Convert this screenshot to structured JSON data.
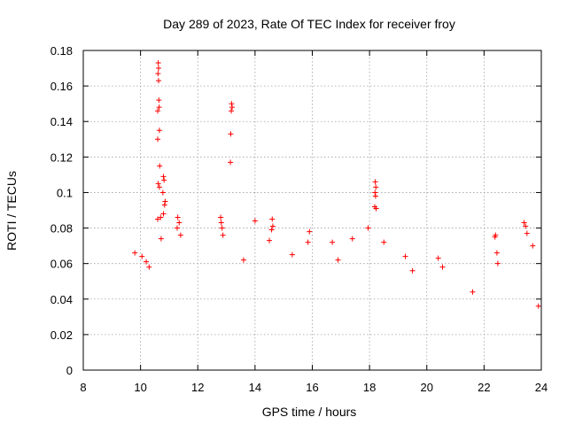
{
  "chart_data": {
    "type": "scatter",
    "title": "Day 289 of 2023, Rate Of TEC Index for receiver froy",
    "xlabel": "GPS time / hours",
    "ylabel": "ROTI / TECUs",
    "xlim": [
      8,
      24
    ],
    "ylim": [
      0,
      0.18
    ],
    "x_ticks": [
      "8",
      "10",
      "12",
      "14",
      "16",
      "18",
      "20",
      "22",
      "24"
    ],
    "y_ticks": [
      "0",
      "0.02",
      "0.04",
      "0.06",
      "0.08",
      "0.1",
      "0.12",
      "0.14",
      "0.16",
      "0.18"
    ],
    "grid": true,
    "marker": "+",
    "color": "#ff0000",
    "series": [
      {
        "points": [
          [
            10.62,
            0.173
          ],
          [
            10.63,
            0.17
          ],
          [
            10.61,
            0.167
          ],
          [
            10.63,
            0.163
          ],
          [
            10.64,
            0.152
          ],
          [
            10.65,
            0.148
          ],
          [
            10.6,
            0.146
          ],
          [
            10.66,
            0.135
          ],
          [
            10.6,
            0.13
          ],
          [
            10.67,
            0.115
          ],
          [
            10.62,
            0.105
          ],
          [
            10.66,
            0.103
          ],
          [
            10.8,
            0.109
          ],
          [
            10.82,
            0.107
          ],
          [
            10.78,
            0.1
          ],
          [
            10.86,
            0.095
          ],
          [
            10.84,
            0.093
          ],
          [
            10.8,
            0.088
          ],
          [
            10.7,
            0.086
          ],
          [
            10.6,
            0.085
          ],
          [
            10.72,
            0.074
          ],
          [
            13.18,
            0.15
          ],
          [
            13.2,
            0.148
          ],
          [
            13.17,
            0.146
          ],
          [
            13.15,
            0.133
          ],
          [
            13.14,
            0.117
          ],
          [
            18.2,
            0.106
          ],
          [
            18.22,
            0.103
          ],
          [
            18.19,
            0.1
          ],
          [
            18.21,
            0.098
          ],
          [
            18.18,
            0.092
          ],
          [
            18.23,
            0.091
          ],
          [
            11.3,
            0.086
          ],
          [
            11.35,
            0.083
          ],
          [
            11.28,
            0.08
          ],
          [
            11.4,
            0.076
          ],
          [
            12.8,
            0.086
          ],
          [
            12.82,
            0.083
          ],
          [
            12.85,
            0.08
          ],
          [
            12.88,
            0.076
          ],
          [
            14.6,
            0.085
          ],
          [
            14.62,
            0.081
          ],
          [
            14.58,
            0.079
          ],
          [
            14.5,
            0.073
          ],
          [
            14.0,
            0.084
          ],
          [
            15.9,
            0.078
          ],
          [
            15.85,
            0.072
          ],
          [
            16.7,
            0.072
          ],
          [
            17.4,
            0.074
          ],
          [
            17.95,
            0.08
          ],
          [
            18.5,
            0.072
          ],
          [
            19.25,
            0.064
          ],
          [
            20.4,
            0.063
          ],
          [
            20.55,
            0.058
          ],
          [
            22.4,
            0.076
          ],
          [
            22.38,
            0.075
          ],
          [
            22.45,
            0.066
          ],
          [
            22.48,
            0.06
          ],
          [
            23.4,
            0.083
          ],
          [
            23.45,
            0.081
          ],
          [
            23.5,
            0.077
          ],
          [
            23.7,
            0.07
          ],
          [
            9.8,
            0.066
          ],
          [
            10.05,
            0.064
          ],
          [
            10.2,
            0.061
          ],
          [
            10.3,
            0.058
          ],
          [
            13.6,
            0.062
          ],
          [
            15.3,
            0.065
          ],
          [
            16.9,
            0.062
          ],
          [
            19.5,
            0.056
          ],
          [
            21.6,
            0.044
          ],
          [
            23.9,
            0.036
          ]
        ]
      }
    ]
  }
}
